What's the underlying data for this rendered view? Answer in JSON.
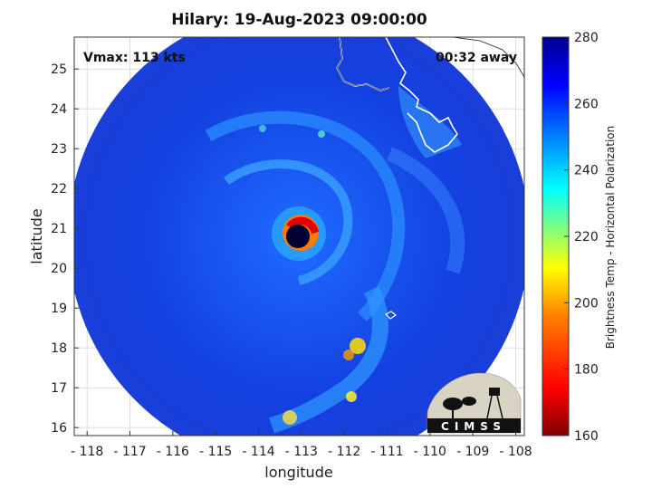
{
  "title": "Hilary: 19-Aug-2023 09:00:00",
  "annotations": {
    "vmax": "Vmax: 113 kts",
    "time_away": "00:32 away"
  },
  "logo_text": "CIMSS",
  "map": {
    "xlabel": "longitude",
    "ylabel": "latitude",
    "xlim": [
      -118.3,
      -107.8
    ],
    "ylim": [
      15.8,
      25.8
    ],
    "xticks": [
      -118,
      -117,
      -116,
      -115,
      -114,
      -113,
      -112,
      -111,
      -110,
      -109,
      -108
    ],
    "yticks": [
      16,
      17,
      18,
      19,
      20,
      21,
      22,
      23,
      24,
      25
    ],
    "swath_center": {
      "lon": -113.0,
      "lat": 20.6
    },
    "eye_center": {
      "lon": -113.0,
      "lat": 20.9
    }
  },
  "colorbar": {
    "label": "Brightness Temp - Horizontal Polarization",
    "min": 160,
    "max": 280,
    "ticks": [
      160,
      180,
      200,
      220,
      240,
      260,
      280
    ],
    "colormap": [
      "#7f0000",
      "#ff0000",
      "#ff8000",
      "#ffff00",
      "#80ff80",
      "#00ffff",
      "#0080ff",
      "#0000ff",
      "#00008f"
    ]
  },
  "colors": {
    "background_ocean": "#1a3fe0",
    "rainband": "#1f8bff",
    "eyewall": "#ff2a00",
    "eye": "#000033"
  }
}
